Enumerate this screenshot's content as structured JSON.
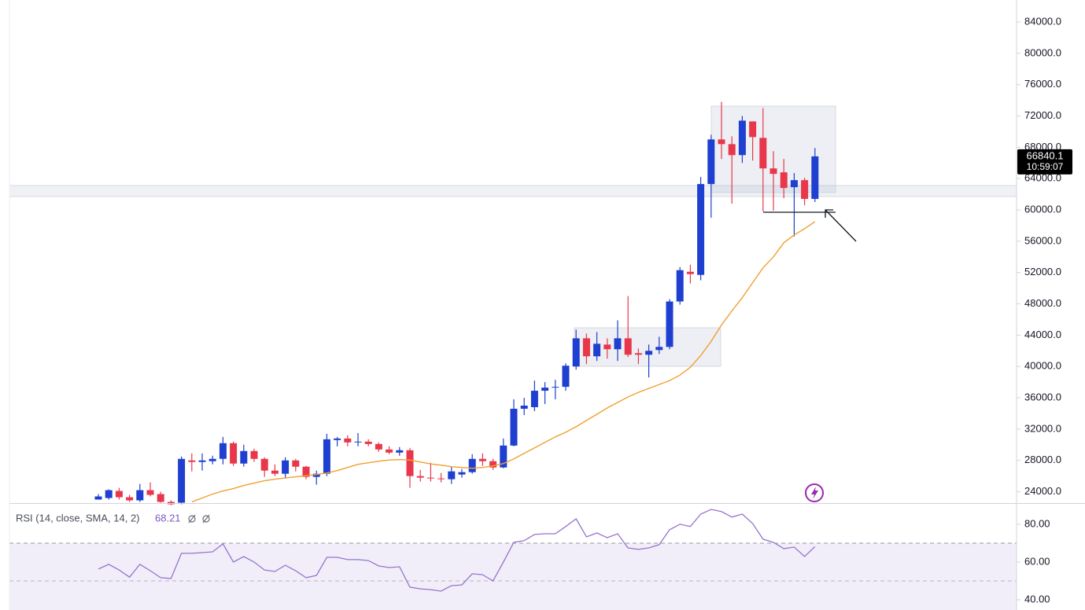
{
  "chart_data": [
    {
      "type": "candlestick",
      "up_color": "#1e3fcf",
      "down_color": "#e8374b",
      "open": [
        23000,
        23200,
        24100,
        23300,
        22900,
        24200,
        23700,
        22700,
        22600,
        28000,
        27800,
        27900,
        28200,
        30200,
        27600,
        29200,
        28200,
        26700,
        26300,
        28000,
        27200,
        25900,
        26300,
        30600,
        30800,
        30300,
        30400,
        30100,
        29400,
        29000,
        29300,
        26000,
        25800,
        25700,
        25600,
        26200,
        26500,
        28200,
        27900,
        27100,
        29900,
        34600,
        34800,
        36900,
        37300,
        37400,
        40000,
        43600,
        41300,
        42800,
        42200,
        43600,
        41700,
        41500,
        42100,
        42500,
        48300,
        52100,
        51700,
        63300,
        69000,
        68400,
        67000,
        71300,
        69200,
        65300,
        64800,
        62900,
        63800,
        61400
      ],
      "high": [
        23700,
        24300,
        24500,
        23600,
        25000,
        25200,
        24000,
        22900,
        28500,
        28900,
        28900,
        28600,
        31000,
        30400,
        30000,
        29500,
        28400,
        27500,
        28400,
        28200,
        27300,
        26700,
        31400,
        31000,
        31200,
        31500,
        30700,
        30300,
        29800,
        29700,
        29600,
        26800,
        27700,
        26400,
        27200,
        26900,
        28800,
        28900,
        28200,
        30800,
        35800,
        36000,
        38200,
        38000,
        38300,
        40400,
        44700,
        44200,
        44400,
        43600,
        45900,
        49000,
        42300,
        42800,
        43800,
        48600,
        52700,
        53000,
        64200,
        69600,
        73800,
        69400,
        72000,
        71300,
        73000,
        67500,
        66500,
        64700,
        64100,
        67900
      ],
      "low": [
        23000,
        23000,
        23000,
        22700,
        22700,
        23400,
        22600,
        22300,
        22400,
        26600,
        26700,
        27500,
        27500,
        27300,
        27200,
        27800,
        25900,
        26000,
        25800,
        26600,
        25600,
        24900,
        26000,
        29800,
        29800,
        29800,
        29800,
        29100,
        28800,
        28600,
        24500,
        25300,
        25300,
        25200,
        25000,
        25800,
        26300,
        27300,
        26800,
        27000,
        29800,
        33800,
        34300,
        35200,
        35800,
        36900,
        39600,
        40300,
        40700,
        41000,
        40700,
        41200,
        40300,
        38600,
        41600,
        42200,
        47900,
        50600,
        51000,
        59000,
        66500,
        60800,
        66000,
        66300,
        59800,
        59900,
        61500,
        56600,
        60600,
        61000
      ],
      "close": [
        23400,
        24200,
        23300,
        22900,
        24200,
        23600,
        22700,
        22400,
        28200,
        27800,
        28000,
        28200,
        30200,
        27600,
        29200,
        28200,
        26700,
        26300,
        28000,
        27200,
        25900,
        26300,
        30700,
        30800,
        30300,
        30400,
        30100,
        29400,
        29000,
        29300,
        26000,
        25800,
        25700,
        25600,
        26600,
        26500,
        28200,
        27900,
        27100,
        29900,
        34600,
        35000,
        36900,
        37300,
        37400,
        40100,
        43600,
        41300,
        42900,
        42200,
        43600,
        41500,
        41500,
        42000,
        42500,
        48300,
        52300,
        51800,
        63300,
        69000,
        68400,
        67000,
        71400,
        69300,
        65300,
        64600,
        62800,
        63800,
        61400,
        66840.1
      ],
      "moving_average": {
        "color": "#f0a030",
        "values": [
          null,
          null,
          null,
          null,
          null,
          null,
          null,
          null,
          null,
          22700,
          23200,
          23700,
          24100,
          24400,
          24800,
          25100,
          25400,
          25600,
          25750,
          25900,
          26050,
          26200,
          26400,
          26700,
          27100,
          27500,
          27700,
          27900,
          28050,
          28100,
          28050,
          27800,
          27550,
          27400,
          27200,
          27100,
          27000,
          27100,
          27300,
          27600,
          28200,
          28900,
          29600,
          30300,
          31000,
          31600,
          32300,
          33100,
          33900,
          34700,
          35400,
          36100,
          36700,
          37200,
          37700,
          38200,
          38900,
          39900,
          41400,
          43200,
          45300,
          47100,
          48800,
          50700,
          52600,
          54000,
          55800,
          56800,
          57600,
          58500
        ]
      },
      "ylim": [
        22550,
        86810
      ],
      "yticks": [
        {
          "value": 24000,
          "label": "24000.0"
        },
        {
          "value": 28000,
          "label": "28000.0"
        },
        {
          "value": 32000,
          "label": "32000.0"
        },
        {
          "value": 36000,
          "label": "36000.0"
        },
        {
          "value": 40000,
          "label": "40000.0"
        },
        {
          "value": 44000,
          "label": "44000.0"
        },
        {
          "value": 48000,
          "label": "48000.0"
        },
        {
          "value": 52000,
          "label": "52000.0"
        },
        {
          "value": 56000,
          "label": "56000.0"
        },
        {
          "value": 60000,
          "label": "60000.0"
        },
        {
          "value": 64000,
          "label": "64000.0"
        },
        {
          "value": 68000,
          "label": "68000.0"
        },
        {
          "value": 72000,
          "label": "72000.0"
        },
        {
          "value": 76000,
          "label": "76000.0"
        },
        {
          "value": 80000,
          "label": "80000.0"
        },
        {
          "value": 84000,
          "label": "84000.0"
        }
      ],
      "last_price": 66840.1,
      "countdown": "10:59:07"
    },
    {
      "type": "line",
      "series": [
        {
          "name": "RSI (14, close, SMA, 14, 2)",
          "color": "#9575cd",
          "values": [
            56.3,
            58.8,
            55.8,
            52.0,
            58.8,
            55.4,
            51.7,
            51.3,
            64.6,
            64.6,
            65.0,
            65.4,
            69.6,
            60.0,
            62.9,
            60.0,
            55.8,
            55.0,
            58.3,
            55.4,
            51.7,
            52.9,
            62.5,
            62.5,
            61.3,
            61.3,
            60.8,
            57.9,
            57.1,
            57.5,
            46.7,
            45.8,
            45.4,
            44.6,
            47.5,
            47.9,
            53.8,
            53.3,
            50.0,
            60.0,
            70.4,
            71.3,
            74.6,
            75.0,
            75.0,
            78.8,
            82.9,
            73.3,
            75.4,
            72.9,
            75.0,
            67.5,
            66.7,
            67.5,
            69.2,
            77.1,
            80.0,
            78.8,
            85.4,
            87.9,
            86.7,
            83.8,
            85.4,
            80.4,
            72.1,
            70.4,
            67.1,
            67.9,
            62.9,
            68.21
          ]
        }
      ],
      "upper_band": 70,
      "middle_band": 50,
      "ylim": [
        34.6,
        90.8
      ],
      "yticks": [
        {
          "value": 40,
          "label": "40.00"
        },
        {
          "value": 60,
          "label": "60.00"
        },
        {
          "value": 80,
          "label": "80.00"
        }
      ]
    }
  ]
}
